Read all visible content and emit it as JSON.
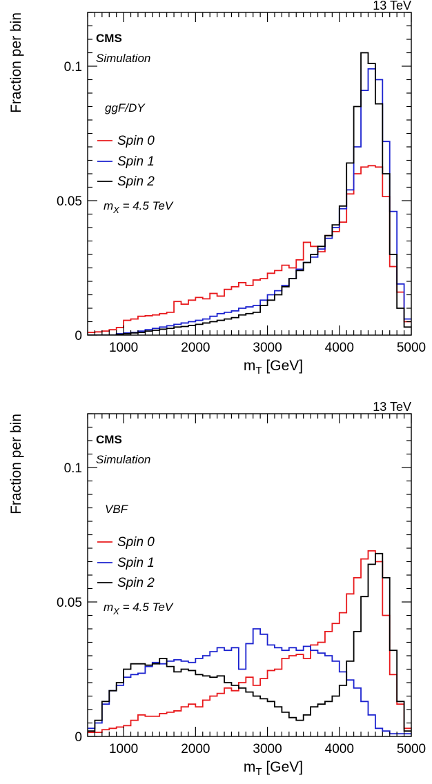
{
  "colors": {
    "spin0": "#e8191c",
    "spin1": "#1b22cf",
    "spin2": "#000000"
  },
  "chart_data": [
    {
      "type": "line",
      "energy_label": "13 TeV",
      "cms_label": "CMS",
      "simulation_label": "Simulation",
      "production_label": "ggF/DY",
      "mass_label_main": "m",
      "mass_label_sub": "X",
      "mass_label_rest": " = 4.5 TeV",
      "xlabel_main": "m",
      "xlabel_sub": "T",
      "xlabel_rest": " [GeV]",
      "ylabel": "Fraction per bin",
      "xlim": [
        500,
        5000
      ],
      "ylim": [
        0,
        0.12
      ],
      "x_ticks": [
        1000,
        2000,
        3000,
        4000,
        5000
      ],
      "y_ticks": [
        {
          "value": 0,
          "label": "0"
        },
        {
          "value": 0.05,
          "label": "0.05"
        },
        {
          "value": 0.1,
          "label": "0.1"
        }
      ],
      "bin_edges_start": 500,
      "bin_width": 100,
      "series": [
        {
          "name": "Spin 0",
          "color_key": "spin0",
          "values": [
            0.001,
            0.0012,
            0.0015,
            0.002,
            0.0028,
            0.0055,
            0.006,
            0.007,
            0.0072,
            0.0075,
            0.008,
            0.0085,
            0.0125,
            0.0115,
            0.013,
            0.014,
            0.0135,
            0.0155,
            0.0145,
            0.017,
            0.018,
            0.0195,
            0.0185,
            0.0205,
            0.021,
            0.023,
            0.024,
            0.026,
            0.025,
            0.028,
            0.0345,
            0.033,
            0.031,
            0.037,
            0.0385,
            0.042,
            0.0525,
            0.06,
            0.0625,
            0.063,
            0.0625,
            0.0515,
            0.0255,
            0.016,
            0.005
          ]
        },
        {
          "name": "Spin 1",
          "color_key": "spin1",
          "values": [
            0,
            0,
            0,
            0,
            0.0005,
            0.0008,
            0.001,
            0.0015,
            0.002,
            0.0025,
            0.003,
            0.0035,
            0.004,
            0.0045,
            0.005,
            0.0055,
            0.006,
            0.007,
            0.008,
            0.0085,
            0.009,
            0.01,
            0.0105,
            0.011,
            0.013,
            0.015,
            0.0165,
            0.0185,
            0.021,
            0.0245,
            0.027,
            0.029,
            0.032,
            0.036,
            0.04,
            0.047,
            0.054,
            0.07,
            0.091,
            0.099,
            0.095,
            0.072,
            0.046,
            0.019,
            0.006
          ]
        },
        {
          "name": "Spin 2",
          "color_key": "spin2",
          "values": [
            0,
            0,
            0,
            0,
            0.0003,
            0.0005,
            0.0008,
            0.001,
            0.0015,
            0.0018,
            0.0022,
            0.0025,
            0.003,
            0.0032,
            0.0036,
            0.004,
            0.0045,
            0.005,
            0.0055,
            0.006,
            0.0065,
            0.0075,
            0.008,
            0.0085,
            0.011,
            0.013,
            0.015,
            0.018,
            0.021,
            0.024,
            0.027,
            0.03,
            0.033,
            0.037,
            0.041,
            0.048,
            0.064,
            0.085,
            0.105,
            0.101,
            0.086,
            0.06,
            0.03,
            0.01,
            0.003
          ]
        }
      ]
    },
    {
      "type": "line",
      "energy_label": "13 TeV",
      "cms_label": "CMS",
      "simulation_label": "Simulation",
      "production_label": "VBF",
      "mass_label_main": "m",
      "mass_label_sub": "X",
      "mass_label_rest": " = 4.5 TeV",
      "xlabel_main": "m",
      "xlabel_sub": "T",
      "xlabel_rest": " [GeV]",
      "ylabel": "Fraction per bin",
      "xlim": [
        500,
        5000
      ],
      "ylim": [
        0,
        0.12
      ],
      "x_ticks": [
        1000,
        2000,
        3000,
        4000,
        5000
      ],
      "y_ticks": [
        {
          "value": 0,
          "label": "0"
        },
        {
          "value": 0.05,
          "label": "0.05"
        },
        {
          "value": 0.1,
          "label": "0.1"
        }
      ],
      "bin_edges_start": 500,
      "bin_width": 100,
      "series": [
        {
          "name": "Spin 0",
          "color_key": "spin0",
          "values": [
            0.0015,
            0.0015,
            0.0025,
            0.003,
            0.0035,
            0.004,
            0.006,
            0.008,
            0.0075,
            0.0075,
            0.0085,
            0.009,
            0.0095,
            0.011,
            0.012,
            0.011,
            0.0135,
            0.015,
            0.016,
            0.018,
            0.017,
            0.02,
            0.022,
            0.019,
            0.0215,
            0.0245,
            0.025,
            0.029,
            0.03,
            0.0305,
            0.029,
            0.034,
            0.035,
            0.039,
            0.042,
            0.046,
            0.053,
            0.059,
            0.066,
            0.069,
            0.065,
            0.045,
            0.023,
            0.012,
            0.003
          ]
        },
        {
          "name": "Spin 1",
          "color_key": "spin1",
          "values": [
            0.003,
            0.005,
            0.012,
            0.017,
            0.019,
            0.022,
            0.023,
            0.0235,
            0.026,
            0.0275,
            0.027,
            0.028,
            0.0285,
            0.028,
            0.0275,
            0.029,
            0.03,
            0.0315,
            0.033,
            0.032,
            0.033,
            0.025,
            0.0345,
            0.04,
            0.038,
            0.034,
            0.033,
            0.032,
            0.033,
            0.032,
            0.0335,
            0.032,
            0.031,
            0.03,
            0.028,
            0.024,
            0.021,
            0.018,
            0.013,
            0.008,
            0.003,
            0.002,
            0.001,
            0.001,
            0.001
          ]
        },
        {
          "name": "Spin 2",
          "color_key": "spin2",
          "values": [
            0.002,
            0.006,
            0.013,
            0.017,
            0.02,
            0.025,
            0.027,
            0.027,
            0.0265,
            0.027,
            0.029,
            0.026,
            0.024,
            0.025,
            0.0245,
            0.023,
            0.0225,
            0.022,
            0.0225,
            0.02,
            0.019,
            0.018,
            0.0165,
            0.015,
            0.014,
            0.013,
            0.011,
            0.009,
            0.007,
            0.006,
            0.008,
            0.011,
            0.012,
            0.013,
            0.015,
            0.019,
            0.028,
            0.039,
            0.052,
            0.064,
            0.068,
            0.059,
            0.032,
            0.013,
            0.002
          ]
        }
      ]
    }
  ]
}
